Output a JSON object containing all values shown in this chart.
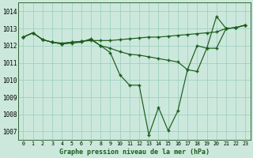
{
  "title": "Graphe pression niveau de la mer (hPa)",
  "bg_color": "#cce8dc",
  "grid_color": "#99ccbb",
  "line_color": "#1a5c1a",
  "x_ticks": [
    0,
    1,
    2,
    3,
    4,
    5,
    6,
    7,
    8,
    9,
    10,
    11,
    12,
    13,
    14,
    15,
    16,
    17,
    18,
    19,
    20,
    21,
    22,
    23
  ],
  "ylim": [
    1006.5,
    1014.5
  ],
  "yticks": [
    1007,
    1008,
    1009,
    1010,
    1011,
    1012,
    1013,
    1014
  ],
  "series1": [
    1012.5,
    1012.75,
    1012.35,
    1012.2,
    1012.1,
    1012.2,
    1012.25,
    1012.3,
    1012.3,
    1012.3,
    1012.35,
    1012.4,
    1012.45,
    1012.5,
    1012.5,
    1012.55,
    1012.6,
    1012.65,
    1012.7,
    1012.75,
    1012.8,
    1013.0,
    1013.05,
    1013.2
  ],
  "series2": [
    1012.5,
    1012.75,
    1012.35,
    1012.2,
    1012.15,
    1012.2,
    1012.25,
    1012.35,
    1012.0,
    1011.85,
    1011.65,
    1011.5,
    1011.45,
    1011.35,
    1011.25,
    1011.15,
    1011.05,
    1010.6,
    1010.5,
    1011.85,
    1011.85,
    1013.0,
    1013.05,
    1013.2
  ],
  "series3": [
    1012.5,
    1012.75,
    1012.35,
    1012.2,
    1012.1,
    1012.15,
    1012.2,
    1012.4,
    1012.0,
    1011.6,
    1010.3,
    1009.7,
    1009.7,
    1006.8,
    1008.4,
    1007.05,
    1008.2,
    1010.6,
    1012.0,
    1011.85,
    1013.7,
    1013.0,
    1013.05,
    1013.2
  ]
}
